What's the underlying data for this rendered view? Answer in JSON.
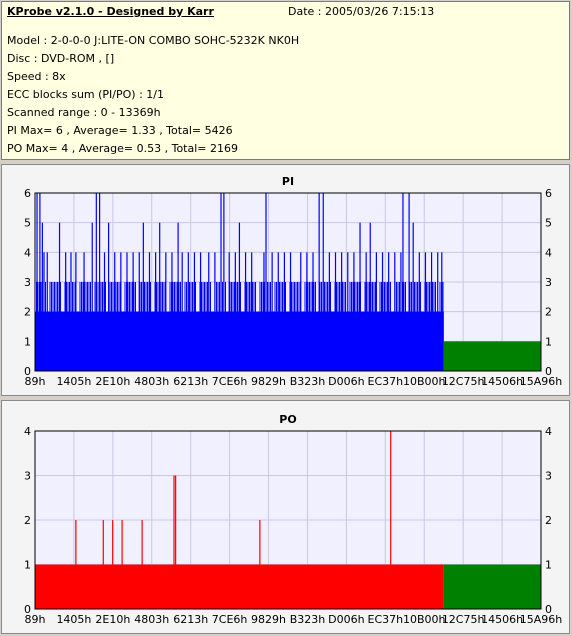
{
  "info": {
    "title": "KProbe v2.1.0 - Designed by Karr",
    "date": "Date : 2005/03/26 7:15:13",
    "lines": [
      "Model : 2-0-0-0 J:LITE-ON COMBO SOHC-5232K NK0H",
      "Disc : DVD-ROM ,  []",
      "Speed : 8x",
      "ECC blocks sum (PI/PO) : 1/1",
      "Scanned range : 0 - 13369h",
      "PI Max= 6 , Average= 1.33 , Total= 5426",
      "PO Max= 4 , Average= 0.53 , Total= 2169"
    ]
  },
  "colors": {
    "pi_bar": "#0000ff",
    "po_bar": "#ff0000",
    "unscanned": "#008000",
    "plot_bg": "#f0f0ff",
    "grid": "#c8c8e6"
  },
  "chart_data": [
    {
      "type": "bar",
      "title": "PI",
      "xlabel": "",
      "ylabel": "",
      "ylim": [
        0,
        6
      ],
      "y_ticks": [
        "0",
        "1",
        "2",
        "3",
        "4",
        "5",
        "6"
      ],
      "x_ticks": [
        "89h",
        "1405h",
        "2E10h",
        "4803h",
        "6213h",
        "7CE6h",
        "9829h",
        "B323h",
        "D006h",
        "EC37h",
        "10B00h",
        "12C75h",
        "14506h",
        "15A96h"
      ],
      "scan_range": [
        "0h",
        "13369h"
      ],
      "unscanned_fill_level": 1,
      "grid": true,
      "spikes": [
        {
          "pos": 0.005,
          "value": 6
        },
        {
          "pos": 0.012,
          "value": 6
        },
        {
          "pos": 0.018,
          "value": 5
        },
        {
          "pos": 0.022,
          "value": 4
        },
        {
          "pos": 0.03,
          "value": 4
        },
        {
          "pos": 0.045,
          "value": 1
        },
        {
          "pos": 0.06,
          "value": 5
        },
        {
          "pos": 0.075,
          "value": 4
        },
        {
          "pos": 0.088,
          "value": 4
        },
        {
          "pos": 0.1,
          "value": 4
        },
        {
          "pos": 0.12,
          "value": 4
        },
        {
          "pos": 0.14,
          "value": 5
        },
        {
          "pos": 0.15,
          "value": 6
        },
        {
          "pos": 0.158,
          "value": 6
        },
        {
          "pos": 0.17,
          "value": 4
        },
        {
          "pos": 0.18,
          "value": 5
        },
        {
          "pos": 0.195,
          "value": 4
        },
        {
          "pos": 0.21,
          "value": 4
        },
        {
          "pos": 0.225,
          "value": 4
        },
        {
          "pos": 0.24,
          "value": 4
        },
        {
          "pos": 0.255,
          "value": 4
        },
        {
          "pos": 0.265,
          "value": 5
        },
        {
          "pos": 0.28,
          "value": 4
        },
        {
          "pos": 0.295,
          "value": 4
        },
        {
          "pos": 0.305,
          "value": 5
        },
        {
          "pos": 0.32,
          "value": 4
        },
        {
          "pos": 0.335,
          "value": 4
        },
        {
          "pos": 0.35,
          "value": 5
        },
        {
          "pos": 0.36,
          "value": 4
        },
        {
          "pos": 0.375,
          "value": 4
        },
        {
          "pos": 0.39,
          "value": 4
        },
        {
          "pos": 0.405,
          "value": 4
        },
        {
          "pos": 0.425,
          "value": 4
        },
        {
          "pos": 0.44,
          "value": 4
        },
        {
          "pos": 0.455,
          "value": 6
        },
        {
          "pos": 0.462,
          "value": 6
        },
        {
          "pos": 0.475,
          "value": 4
        },
        {
          "pos": 0.49,
          "value": 4
        },
        {
          "pos": 0.5,
          "value": 5
        },
        {
          "pos": 0.515,
          "value": 4
        },
        {
          "pos": 0.53,
          "value": 4
        },
        {
          "pos": 0.545,
          "value": 1
        },
        {
          "pos": 0.56,
          "value": 4
        },
        {
          "pos": 0.565,
          "value": 6
        },
        {
          "pos": 0.58,
          "value": 4
        },
        {
          "pos": 0.595,
          "value": 4
        },
        {
          "pos": 0.61,
          "value": 4
        },
        {
          "pos": 0.625,
          "value": 4
        },
        {
          "pos": 0.635,
          "value": 1
        },
        {
          "pos": 0.65,
          "value": 4
        },
        {
          "pos": 0.665,
          "value": 4
        },
        {
          "pos": 0.68,
          "value": 4
        },
        {
          "pos": 0.695,
          "value": 6
        },
        {
          "pos": 0.705,
          "value": 6
        },
        {
          "pos": 0.72,
          "value": 4
        },
        {
          "pos": 0.735,
          "value": 4
        },
        {
          "pos": 0.75,
          "value": 4
        },
        {
          "pos": 0.765,
          "value": 4
        },
        {
          "pos": 0.78,
          "value": 4
        },
        {
          "pos": 0.795,
          "value": 5
        },
        {
          "pos": 0.81,
          "value": 4
        },
        {
          "pos": 0.82,
          "value": 5
        },
        {
          "pos": 0.835,
          "value": 4
        },
        {
          "pos": 0.85,
          "value": 4
        },
        {
          "pos": 0.865,
          "value": 4
        },
        {
          "pos": 0.88,
          "value": 4
        },
        {
          "pos": 0.895,
          "value": 4
        },
        {
          "pos": 0.9,
          "value": 6
        },
        {
          "pos": 0.915,
          "value": 6
        },
        {
          "pos": 0.925,
          "value": 5
        },
        {
          "pos": 0.94,
          "value": 4
        },
        {
          "pos": 0.955,
          "value": 4
        },
        {
          "pos": 0.97,
          "value": 4
        },
        {
          "pos": 0.985,
          "value": 4
        },
        {
          "pos": 0.995,
          "value": 4
        }
      ],
      "baseline_band": [
        2,
        3
      ]
    },
    {
      "type": "bar",
      "title": "PO",
      "xlabel": "",
      "ylabel": "",
      "ylim": [
        0,
        4
      ],
      "y_ticks": [
        "0",
        "1",
        "2",
        "3",
        "4"
      ],
      "x_ticks": [
        "89h",
        "1405h",
        "2E10h",
        "4803h",
        "6213h",
        "7CE6h",
        "9829h",
        "B323h",
        "D006h",
        "EC37h",
        "10B00h",
        "12C75h",
        "14506h",
        "15A96h"
      ],
      "scan_range": [
        "0h",
        "13369h"
      ],
      "unscanned_fill_level": 1,
      "grid": true,
      "baseline": 1,
      "spikes": [
        {
          "pos": 0.1,
          "value": 2
        },
        {
          "pos": 0.167,
          "value": 2
        },
        {
          "pos": 0.19,
          "value": 2
        },
        {
          "pos": 0.213,
          "value": 2
        },
        {
          "pos": 0.262,
          "value": 2
        },
        {
          "pos": 0.34,
          "value": 3
        },
        {
          "pos": 0.344,
          "value": 3
        },
        {
          "pos": 0.55,
          "value": 2
        },
        {
          "pos": 0.87,
          "value": 4
        }
      ]
    }
  ]
}
